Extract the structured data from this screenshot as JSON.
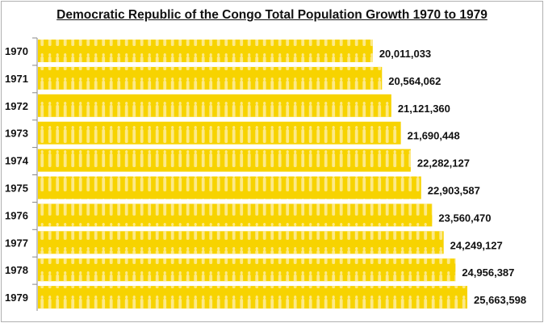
{
  "chart_data": {
    "type": "bar",
    "orientation": "horizontal",
    "title": "Democratic Republic of the Congo Total Population Growth 1970 to 1979",
    "categories": [
      "1970",
      "1971",
      "1972",
      "1973",
      "1974",
      "1975",
      "1976",
      "1977",
      "1978",
      "1979"
    ],
    "values": [
      20011033,
      20564062,
      21121360,
      21690448,
      22282127,
      22903587,
      23560470,
      24249127,
      24956387,
      25663598
    ],
    "value_labels": [
      "20,011,033",
      "20,564,062",
      "21,121,360",
      "21,690,448",
      "22,282,127",
      "22,903,587",
      "23,560,470",
      "24,249,127",
      "24,956,387",
      "25,663,598"
    ],
    "xlim": [
      0,
      25663598
    ],
    "grid": false,
    "bar_color": "#f7d300",
    "pattern_color": "#fbe77a"
  }
}
